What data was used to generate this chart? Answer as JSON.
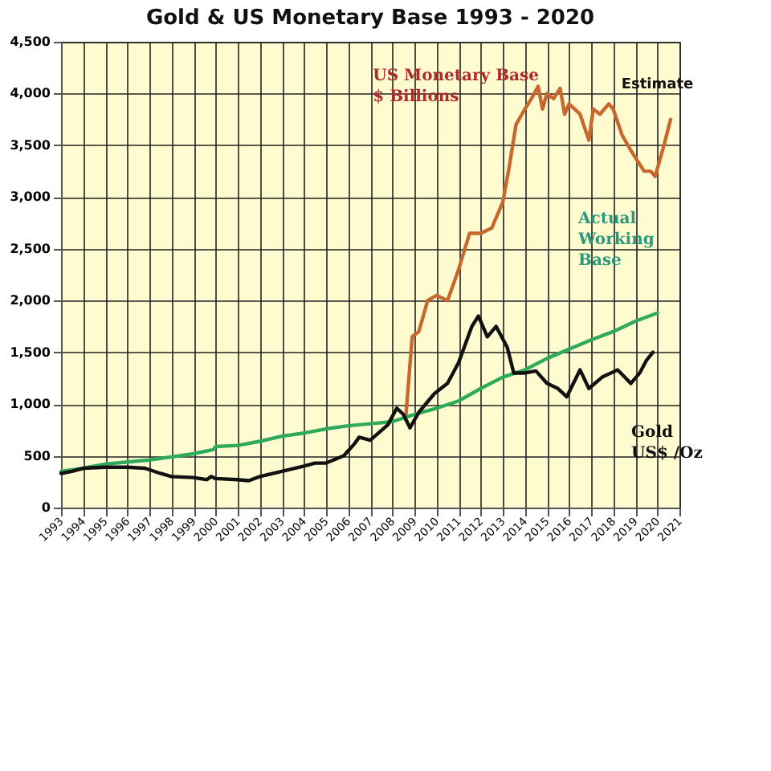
{
  "chart_data": {
    "type": "line",
    "title": "Gold & US Monetary Base 1993 - 2020",
    "xlim": [
      1993,
      2021
    ],
    "xticks": [
      1993,
      1994,
      1995,
      1996,
      1997,
      1998,
      1999,
      2000,
      2001,
      2002,
      2003,
      2004,
      2005,
      2006,
      2007,
      2008,
      2009,
      2010,
      2011,
      2012,
      2013,
      2014,
      2015,
      2016,
      2017,
      2018,
      2019,
      2020,
      2021
    ],
    "ylim": [
      0,
      4500
    ],
    "yticks": [
      {
        "value": 0,
        "label": "0"
      },
      {
        "value": 500,
        "label": "500"
      },
      {
        "value": 1000,
        "label": "1,000"
      },
      {
        "value": 1500,
        "label": "1,500"
      },
      {
        "value": 2000,
        "label": "2,000"
      },
      {
        "value": 2500,
        "label": "2,500"
      },
      {
        "value": 3000,
        "label": "3,000"
      },
      {
        "value": 3500,
        "label": "3,500"
      },
      {
        "value": 4000,
        "label": "4,000"
      },
      {
        "value": 4500,
        "label": "4,500"
      }
    ],
    "grid": true,
    "marker": "none",
    "line_style": "solid",
    "annotations": [
      "Estimate"
    ],
    "series": [
      {
        "name": "US Monetary Base\n$ Billions",
        "color": "#c8682e",
        "x": [
          2008.6,
          2008.9,
          2009.2,
          2009.6,
          2010,
          2010.5,
          2011,
          2011.5,
          2012,
          2012.5,
          2013,
          2013.3,
          2013.6,
          2014,
          2014.3,
          2014.6,
          2014.8,
          2015,
          2015.3,
          2015.6,
          2015.8,
          2016,
          2016.5,
          2016.9,
          2017.1,
          2017.4,
          2017.8,
          2018,
          2018.4,
          2018.8,
          2019.1,
          2019.4,
          2019.7,
          2019.9,
          2020.3,
          2020.6
        ],
        "values": [
          850,
          1650,
          1700,
          2000,
          2050,
          2000,
          2300,
          2650,
          2650,
          2700,
          2950,
          3300,
          3700,
          3850,
          3950,
          4070,
          3850,
          4000,
          3950,
          4050,
          3800,
          3900,
          3800,
          3550,
          3850,
          3800,
          3900,
          3850,
          3600,
          3450,
          3350,
          3250,
          3250,
          3200,
          3500,
          3750
        ]
      },
      {
        "name": "Actual\nWorking\nBase",
        "color": "#2faa5a",
        "x": [
          1993,
          1994,
          1995,
          1996,
          1997,
          1998,
          1999,
          1999.9,
          2000,
          2001,
          2002,
          2003,
          2004,
          2005,
          2006,
          2007,
          2008,
          2009,
          2010,
          2011,
          2012,
          2013,
          2014,
          2015,
          2016,
          2017,
          2018,
          2019,
          2020
        ],
        "values": [
          350,
          380,
          420,
          440,
          460,
          490,
          520,
          560,
          590,
          600,
          640,
          690,
          720,
          760,
          790,
          810,
          830,
          900,
          960,
          1030,
          1150,
          1260,
          1330,
          1440,
          1530,
          1620,
          1700,
          1800,
          1880
        ]
      },
      {
        "name": "Gold\nUS$ /Oz",
        "color": "#111111",
        "x": [
          1993,
          1993.5,
          1994,
          1995,
          1996,
          1996.8,
          1997.5,
          1998,
          1999,
          1999.6,
          1999.8,
          2000,
          2001,
          2001.5,
          2002,
          2003,
          2004,
          2004.5,
          2005,
          2005.8,
          2006.3,
          2006.5,
          2007,
          2007.8,
          2008.2,
          2008.5,
          2008.8,
          2009.2,
          2009.9,
          2010.5,
          2011,
          2011.6,
          2011.9,
          2012.3,
          2012.7,
          2013.2,
          2013.5,
          2014,
          2014.5,
          2015,
          2015.5,
          2015.9,
          2016.5,
          2016.9,
          2017.5,
          2018.2,
          2018.8,
          2019.2,
          2019.5,
          2019.8
        ],
        "values": [
          330,
          350,
          380,
          390,
          390,
          380,
          330,
          300,
          290,
          270,
          300,
          280,
          270,
          260,
          300,
          350,
          400,
          430,
          430,
          500,
          620,
          680,
          650,
          800,
          960,
          900,
          770,
          920,
          1100,
          1200,
          1400,
          1750,
          1850,
          1650,
          1750,
          1550,
          1300,
          1300,
          1320,
          1200,
          1150,
          1070,
          1330,
          1150,
          1260,
          1330,
          1200,
          1300,
          1420,
          1500
        ]
      }
    ]
  }
}
